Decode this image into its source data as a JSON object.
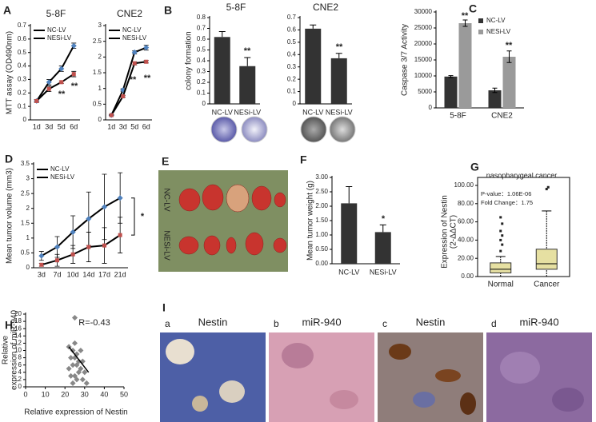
{
  "chart_data": [
    {
      "type": "line",
      "panel": "A",
      "title": "5-8F",
      "ylabel": [
        "MTT assay (OD490nm)"
      ],
      "categories": [
        "1d",
        "3d",
        "5d",
        "6d"
      ],
      "series": [
        {
          "name": "NC-LV",
          "color": "#4f81bd",
          "values": [
            0.14,
            0.28,
            0.38,
            0.55
          ],
          "errors": [
            0.01,
            0.02,
            0.02,
            0.02
          ]
        },
        {
          "name": "NESi-LV",
          "color": "#c0504d",
          "values": [
            0.14,
            0.23,
            0.28,
            0.34
          ],
          "errors": [
            0.01,
            0.02,
            0.01,
            0.02
          ]
        }
      ],
      "ylim": [
        0,
        0.7
      ],
      "yticks": [
        0,
        0.1,
        0.2,
        0.3,
        0.4,
        0.5,
        0.6,
        0.7
      ],
      "annotations": [
        "**",
        "**"
      ]
    },
    {
      "type": "line",
      "title": "CNE2",
      "categories": [
        "1d",
        "3d",
        "5d",
        "6d"
      ],
      "series": [
        {
          "name": "NC-LV",
          "color": "#4f81bd",
          "values": [
            0.15,
            0.95,
            2.15,
            2.3
          ],
          "errors": [
            0.02,
            0.04,
            0.05,
            0.08
          ]
        },
        {
          "name": "NESi-LV",
          "color": "#c0504d",
          "values": [
            0.15,
            0.75,
            1.8,
            1.85
          ],
          "errors": [
            0.02,
            0.03,
            0.05,
            0.04
          ]
        }
      ],
      "ylim": [
        0,
        3
      ],
      "yticks": [
        0,
        0.5,
        1,
        1.5,
        2,
        2.5,
        3
      ],
      "annotations": [
        "**",
        "**"
      ]
    },
    {
      "type": "bar",
      "panel": "B",
      "title": "5-8F",
      "ylabel": [
        "colony formation"
      ],
      "categories": [
        "NC-LV",
        "NESi-LV"
      ],
      "values": [
        0.62,
        0.35
      ],
      "errors": [
        0.05,
        0.08
      ],
      "color": "#333333",
      "ylim": [
        0,
        0.8
      ],
      "yticks": [
        0,
        0.1,
        0.2,
        0.3,
        0.4,
        0.5,
        0.6,
        0.7,
        0.8
      ],
      "annotations": [
        "**"
      ]
    },
    {
      "type": "bar",
      "title": "CNE2",
      "categories": [
        "NC-LV",
        "NESi-LV"
      ],
      "values": [
        0.61,
        0.37
      ],
      "errors": [
        0.03,
        0.04
      ],
      "color": "#333333",
      "ylim": [
        0,
        0.7
      ],
      "yticks": [
        0,
        0.1,
        0.2,
        0.3,
        0.4,
        0.5,
        0.6,
        0.7
      ],
      "annotations": [
        "**"
      ]
    },
    {
      "type": "grouped_bar",
      "panel": "C",
      "ylabel": [
        "Caspase 3/7 Activity"
      ],
      "categories": [
        "5-8F",
        "CNE2"
      ],
      "series": [
        {
          "name": "NC-LV",
          "color": "#333333",
          "values": [
            9800,
            5500
          ],
          "errors": [
            300,
            700
          ]
        },
        {
          "name": "NESi-LV",
          "color": "#9a9a9a",
          "values": [
            26500,
            16000
          ],
          "errors": [
            1000,
            1800
          ]
        }
      ],
      "ylim": [
        0,
        30000
      ],
      "yticks": [
        0,
        5000,
        10000,
        15000,
        20000,
        25000,
        30000
      ],
      "annotations": [
        "**",
        "**"
      ]
    },
    {
      "type": "line",
      "panel": "D",
      "ylabel": [
        "Mean tumor volume (mm3)"
      ],
      "categories": [
        "3d",
        "7d",
        "10d",
        "14d",
        "17d",
        "21d"
      ],
      "series": [
        {
          "name": "NC-LV",
          "color": "#4f81bd",
          "values": [
            0.4,
            0.7,
            1.2,
            1.65,
            2.05,
            2.35
          ],
          "errors": [
            0.15,
            0.35,
            0.55,
            0.9,
            1.1,
            0.85
          ]
        },
        {
          "name": "NESi-LV",
          "color": "#c0504d",
          "values": [
            0.1,
            0.25,
            0.45,
            0.7,
            0.75,
            1.1
          ],
          "errors": [
            0.05,
            0.2,
            0.3,
            0.5,
            0.6,
            0.6
          ]
        }
      ],
      "ylim": [
        0,
        3.5
      ],
      "yticks": [
        0,
        0.5,
        1,
        1.5,
        2,
        2.5,
        3,
        3.5
      ],
      "annotations": [
        "*"
      ]
    },
    {
      "type": "bar",
      "panel": "F",
      "ylabel": [
        "Mean tumor weight (g)"
      ],
      "categories": [
        "NC-LV",
        "NESi-LV"
      ],
      "values": [
        2.1,
        1.1
      ],
      "errors": [
        0.58,
        0.25
      ],
      "color": "#333333",
      "ylim": [
        0,
        3
      ],
      "yticks": [
        {
          "value": 0,
          "label": "0.00"
        },
        {
          "value": 0.5,
          "label": "0.50"
        },
        {
          "value": 1,
          "label": "1.00"
        },
        {
          "value": 1.5,
          "label": "1.50"
        },
        {
          "value": 2,
          "label": "2.00"
        },
        {
          "value": 2.5,
          "label": "2.50"
        },
        {
          "value": 3,
          "label": "3.00"
        }
      ],
      "annotations": [
        "*"
      ]
    },
    {
      "type": "box",
      "panel": "G",
      "title": "nasopharygeal cancer",
      "ylabel": [
        "Expression of Nestin",
        "(2-ΔΔCT)"
      ],
      "categories": [
        "Normal",
        "Cancer"
      ],
      "boxes": [
        {
          "whislo": 0,
          "q1": 4,
          "med": 8,
          "q3": 15,
          "whishi": 22,
          "fliers": [
            28,
            35,
            40,
            45,
            50,
            58,
            65
          ]
        },
        {
          "whislo": 0,
          "q1": 8,
          "med": 14,
          "q3": 30,
          "whishi": 72,
          "fliers": [
            96,
            98
          ]
        }
      ],
      "color": "#e6e0a2",
      "ylim": [
        0,
        100
      ],
      "yticks": [
        {
          "value": 0,
          "label": "0.00"
        },
        {
          "value": 20,
          "label": "20.00"
        },
        {
          "value": 40,
          "label": "40.00"
        },
        {
          "value": 60,
          "label": "60.00"
        },
        {
          "value": 80,
          "label": "80.00"
        },
        {
          "value": 100,
          "label": "100.00"
        }
      ],
      "annotations": [
        "P-value：1.06E-06",
        "Fold Change：1.75"
      ]
    },
    {
      "type": "scatter",
      "panel": "H",
      "xlabel": "Relative expression of Nestin",
      "ylabel": [
        "Relative",
        "expression of miR-940"
      ],
      "x": [
        25,
        22,
        24,
        26,
        28,
        23,
        27,
        25,
        29,
        24,
        26,
        28,
        22,
        27,
        30,
        25,
        23,
        29,
        26,
        31,
        24,
        25
      ],
      "y": [
        19,
        11,
        10,
        9,
        10,
        8,
        7,
        8,
        7,
        6,
        6,
        5,
        5,
        4,
        4,
        3,
        3,
        2,
        2,
        1,
        1,
        12
      ],
      "color": "#888888",
      "fit": {
        "x": [
          22,
          32
        ],
        "y": [
          11,
          4
        ]
      },
      "xlim": [
        0,
        50
      ],
      "xticks": [
        0,
        10,
        20,
        30,
        40,
        50
      ],
      "ylim": [
        0,
        20
      ],
      "yticks": [
        0,
        2,
        4,
        6,
        8,
        10,
        12,
        14,
        16,
        18,
        20
      ],
      "annotations": [
        "R=-0.43"
      ]
    }
  ],
  "images": [
    {
      "panel": "E",
      "labels": [
        "NC-LV",
        "NESi-LV"
      ]
    },
    {
      "panel": "I",
      "items": [
        {
          "letter": "a",
          "label": "Nestin"
        },
        {
          "letter": "b",
          "label": "miR-940"
        },
        {
          "letter": "c",
          "label": "Nestin"
        },
        {
          "letter": "d",
          "label": "miR-940"
        }
      ]
    }
  ]
}
